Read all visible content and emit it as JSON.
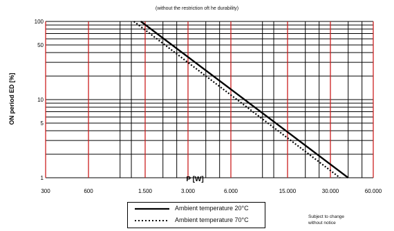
{
  "subtitle": "(without the restriction oft he durability)",
  "legend": [
    {
      "label": "Ambient temperature 20°C",
      "style": "solid"
    },
    {
      "label": "Ambient temperature 70°C",
      "style": "dotted"
    }
  ],
  "note": [
    "Subject to change",
    "without notice"
  ],
  "chart_data": {
    "type": "line",
    "xlabel": "P [W]",
    "ylabel": "ON period ED [%]",
    "x_scale": "log",
    "y_scale": "log",
    "xlim": [
      300,
      60000
    ],
    "ylim": [
      1,
      100
    ],
    "x_ticks": [
      {
        "value": 300,
        "label": "300"
      },
      {
        "value": 600,
        "label": "600"
      },
      {
        "value": 1500,
        "label": "1.500"
      },
      {
        "value": 3000,
        "label": "3.000"
      },
      {
        "value": 6000,
        "label": "6.000"
      },
      {
        "value": 15000,
        "label": "15.000"
      },
      {
        "value": 30000,
        "label": "30.000"
      },
      {
        "value": 60000,
        "label": "60.000"
      }
    ],
    "y_ticks": [
      {
        "value": 100,
        "label": "100"
      },
      {
        "value": 50,
        "label": "50"
      },
      {
        "value": 10,
        "label": "10"
      },
      {
        "value": 5,
        "label": "5"
      },
      {
        "value": 1,
        "label": "1"
      }
    ],
    "x_grid_red": [
      300,
      600,
      1500,
      3000,
      6000,
      15000,
      30000,
      60000
    ],
    "x_grid_black": [
      1000,
      1200,
      2000,
      2500,
      4000,
      5000,
      10000,
      12000,
      20000,
      25000,
      40000,
      50000
    ],
    "y_grid": [
      1,
      2,
      3,
      4,
      5,
      6,
      7,
      8,
      9,
      10,
      20,
      30,
      40,
      50,
      60,
      70,
      80,
      90,
      100
    ],
    "grid": true,
    "series": [
      {
        "x": [
          1400,
          40000
        ],
        "y": [
          100,
          1
        ],
        "color": "#000000",
        "style": "solid"
      },
      {
        "x": [
          1250,
          35000
        ],
        "y": [
          100,
          1
        ],
        "color": "#000000",
        "style": "dotted"
      }
    ]
  }
}
